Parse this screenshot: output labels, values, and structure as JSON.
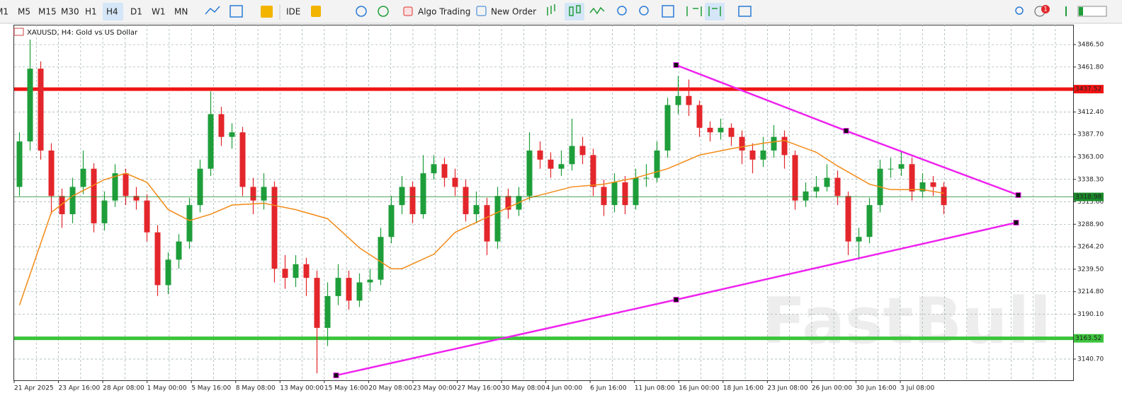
{
  "toolbar": {
    "timeframes": [
      "M1",
      "M5",
      "M15",
      "M30",
      "H1",
      "H4",
      "D1",
      "W1",
      "MN"
    ],
    "active": "H4",
    "ide": "IDE",
    "algo": "Algo Trading",
    "order": "New Order",
    "badge": "1"
  },
  "chart_data": {
    "type": "candlestick",
    "title": "XAUUSD, H4:  Gold vs US Dollar",
    "open": [
      3330,
      3380,
      3460,
      3370,
      3320,
      3300,
      3330,
      3350,
      3290,
      3315,
      3345,
      3320,
      3315,
      3280,
      3222,
      3250,
      3270,
      3310,
      3350,
      3410,
      3385,
      3390,
      3330,
      3315,
      3330,
      3240,
      3230,
      3245,
      3230,
      3175,
      3210,
      3230,
      3205,
      3225,
      3228,
      3275,
      3310,
      3330,
      3300,
      3345,
      3355,
      3340,
      3330,
      3300,
      3310,
      3270,
      3320,
      3305,
      3320,
      3370,
      3360,
      3350,
      3355,
      3375,
      3365,
      3330,
      3310,
      3335,
      3310,
      3340,
      3340,
      3370,
      3420,
      3430,
      3420,
      3395,
      3390,
      3395,
      3385,
      3370,
      3360,
      3370,
      3385,
      3365,
      3315,
      3325,
      3330,
      3340,
      3320,
      3270,
      3275,
      3310,
      3350,
      3350,
      3355,
      3325,
      3335,
      3330
    ],
    "high": [
      3390,
      3492,
      3468,
      3378,
      3328,
      3340,
      3370,
      3356,
      3325,
      3355,
      3350,
      3330,
      3322,
      3288,
      3258,
      3278,
      3318,
      3360,
      3435,
      3418,
      3400,
      3396,
      3340,
      3345,
      3336,
      3255,
      3255,
      3252,
      3238,
      3225,
      3245,
      3238,
      3235,
      3240,
      3285,
      3320,
      3342,
      3336,
      3365,
      3365,
      3362,
      3350,
      3338,
      3325,
      3318,
      3330,
      3328,
      3330,
      3390,
      3380,
      3368,
      3370,
      3405,
      3385,
      3372,
      3338,
      3345,
      3342,
      3350,
      3355,
      3380,
      3428,
      3452,
      3448,
      3425,
      3402,
      3405,
      3400,
      3392,
      3378,
      3385,
      3398,
      3392,
      3370,
      3335,
      3342,
      3355,
      3348,
      3325,
      3285,
      3318,
      3360,
      3362,
      3368,
      3362,
      3345,
      3342,
      3335
    ],
    "low": [
      3320,
      3370,
      3360,
      3300,
      3285,
      3290,
      3322,
      3280,
      3282,
      3308,
      3310,
      3305,
      3270,
      3210,
      3212,
      3240,
      3262,
      3302,
      3342,
      3375,
      3372,
      3320,
      3300,
      3305,
      3225,
      3218,
      3220,
      3210,
      3125,
      3155,
      3200,
      3195,
      3198,
      3215,
      3222,
      3268,
      3300,
      3290,
      3295,
      3338,
      3330,
      3320,
      3292,
      3290,
      3255,
      3262,
      3295,
      3298,
      3315,
      3350,
      3340,
      3342,
      3348,
      3355,
      3320,
      3298,
      3302,
      3300,
      3305,
      3330,
      3335,
      3362,
      3410,
      3408,
      3385,
      3380,
      3382,
      3375,
      3355,
      3345,
      3352,
      3362,
      3350,
      3305,
      3308,
      3318,
      3325,
      3310,
      3255,
      3250,
      3268,
      3302,
      3340,
      3342,
      3315,
      3318,
      3320,
      3300
    ],
    "close": [
      3380,
      3460,
      3370,
      3320,
      3300,
      3330,
      3350,
      3290,
      3315,
      3345,
      3320,
      3315,
      3280,
      3222,
      3250,
      3270,
      3310,
      3350,
      3410,
      3385,
      3390,
      3330,
      3315,
      3330,
      3240,
      3230,
      3245,
      3230,
      3175,
      3210,
      3230,
      3205,
      3225,
      3228,
      3275,
      3310,
      3330,
      3300,
      3345,
      3355,
      3340,
      3330,
      3300,
      3310,
      3270,
      3320,
      3305,
      3320,
      3370,
      3360,
      3350,
      3355,
      3375,
      3365,
      3330,
      3310,
      3335,
      3310,
      3340,
      3340,
      3370,
      3420,
      3430,
      3420,
      3395,
      3390,
      3395,
      3385,
      3370,
      3360,
      3370,
      3385,
      3365,
      3315,
      3325,
      3330,
      3340,
      3320,
      3270,
      3275,
      3310,
      3350,
      3350,
      3355,
      3325,
      3335,
      3330,
      3310
    ],
    "bull_color": "#1e9e3a",
    "bear_color": "#e3262b",
    "ma": {
      "color": "#f28a16",
      "x": [
        0,
        3,
        5,
        8,
        10,
        12,
        14,
        16,
        18,
        20,
        23,
        26,
        29,
        32,
        35,
        36,
        39,
        41,
        45,
        48,
        52,
        55,
        58,
        61,
        64,
        67,
        70,
        72,
        75,
        77,
        80,
        82,
        85,
        87
      ],
      "values": [
        3200,
        3302,
        3320,
        3338,
        3345,
        3335,
        3305,
        3293,
        3300,
        3310,
        3312,
        3305,
        3295,
        3263,
        3240,
        3240,
        3256,
        3280,
        3302,
        3318,
        3330,
        3333,
        3340,
        3350,
        3365,
        3372,
        3378,
        3381,
        3368,
        3353,
        3333,
        3327,
        3327,
        3323
      ]
    },
    "levels": [
      {
        "value": 3437.52,
        "color": "#f01414"
      },
      {
        "value": 3163.52,
        "color": "#3cc43c"
      }
    ],
    "current": {
      "value": 3318.98,
      "color": "#1a8a2a"
    },
    "trendlines": [
      {
        "color": "#ee22ee",
        "x": [
          61.8,
          77.8,
          94.0
        ],
        "y": [
          3464,
          3391.7,
          3321
        ]
      },
      {
        "color": "#ee22ee",
        "x": [
          29.8,
          61.8,
          93.8
        ],
        "y": [
          3122.8,
          3206,
          3290.7
        ]
      }
    ],
    "ylim": [
      3117.4,
      3508.3
    ],
    "yticks": [
      {
        "value": 3486.5,
        "label": "3486.50"
      },
      {
        "value": 3461.8,
        "label": "3461.80"
      },
      {
        "value": 3412.4,
        "label": "3412.40"
      },
      {
        "value": 3387.7,
        "label": "3387.70"
      },
      {
        "value": 3363,
        "label": "3363.00"
      },
      {
        "value": 3338.3,
        "label": "3338.30"
      },
      {
        "value": 3313.6,
        "label": "3313.60"
      },
      {
        "value": 3288.9,
        "label": "3288.90"
      },
      {
        "value": 3264.2,
        "label": "3264.20"
      },
      {
        "value": 3239.5,
        "label": "3239.50"
      },
      {
        "value": 3214.8,
        "label": "3214.80"
      },
      {
        "value": 3190.1,
        "label": "3190.10"
      },
      {
        "value": 3140.7,
        "label": "3140.70"
      }
    ],
    "x_labels": [
      "21 Apr 2025",
      "23 Apr 16:00",
      "28 Apr 08:00",
      "1 May 00:00",
      "5 May 16:00",
      "8 May 08:00",
      "13 May 00:00",
      "15 May 16:00",
      "20 May 08:00",
      "23 May 00:00",
      "27 May 16:00",
      "30 May 08:00",
      "4 Jun 00:00",
      "6 Jun 16:00",
      "11 Jun 08:00",
      "16 Jun 00:00",
      "18 Jun 16:00",
      "23 Jun 08:00",
      "26 Jun 00:00",
      "30 Jun 16:00",
      "3 Jul 08:00"
    ],
    "watermark": "FastBull",
    "grid": true
  }
}
